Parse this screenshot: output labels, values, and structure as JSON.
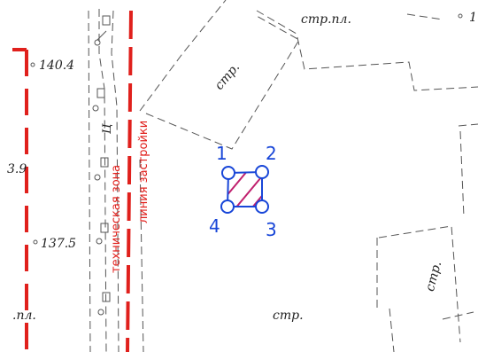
{
  "labels": {
    "building_top": "стр.",
    "building_right": "стр.",
    "building_bottom": "стр.",
    "top_right": "стр.пл.",
    "left_bottom": ".пл.",
    "elevation_1": "140.4",
    "elevation_2": "137.5",
    "partial_left": "3.9",
    "partial_right": "1",
    "zone_tech": "техническая зона",
    "zone_build": "линия застройки",
    "symbol_c": "Ц"
  },
  "points": [
    {
      "label": "1"
    },
    {
      "label": "2"
    },
    {
      "label": "3"
    },
    {
      "label": "4"
    }
  ],
  "colors": {
    "boundary_red": "#e0201c",
    "marker_blue": "#1846d8",
    "hatch_magenta": "#c0206e",
    "line_dark": "#555555",
    "text": "#222222"
  }
}
